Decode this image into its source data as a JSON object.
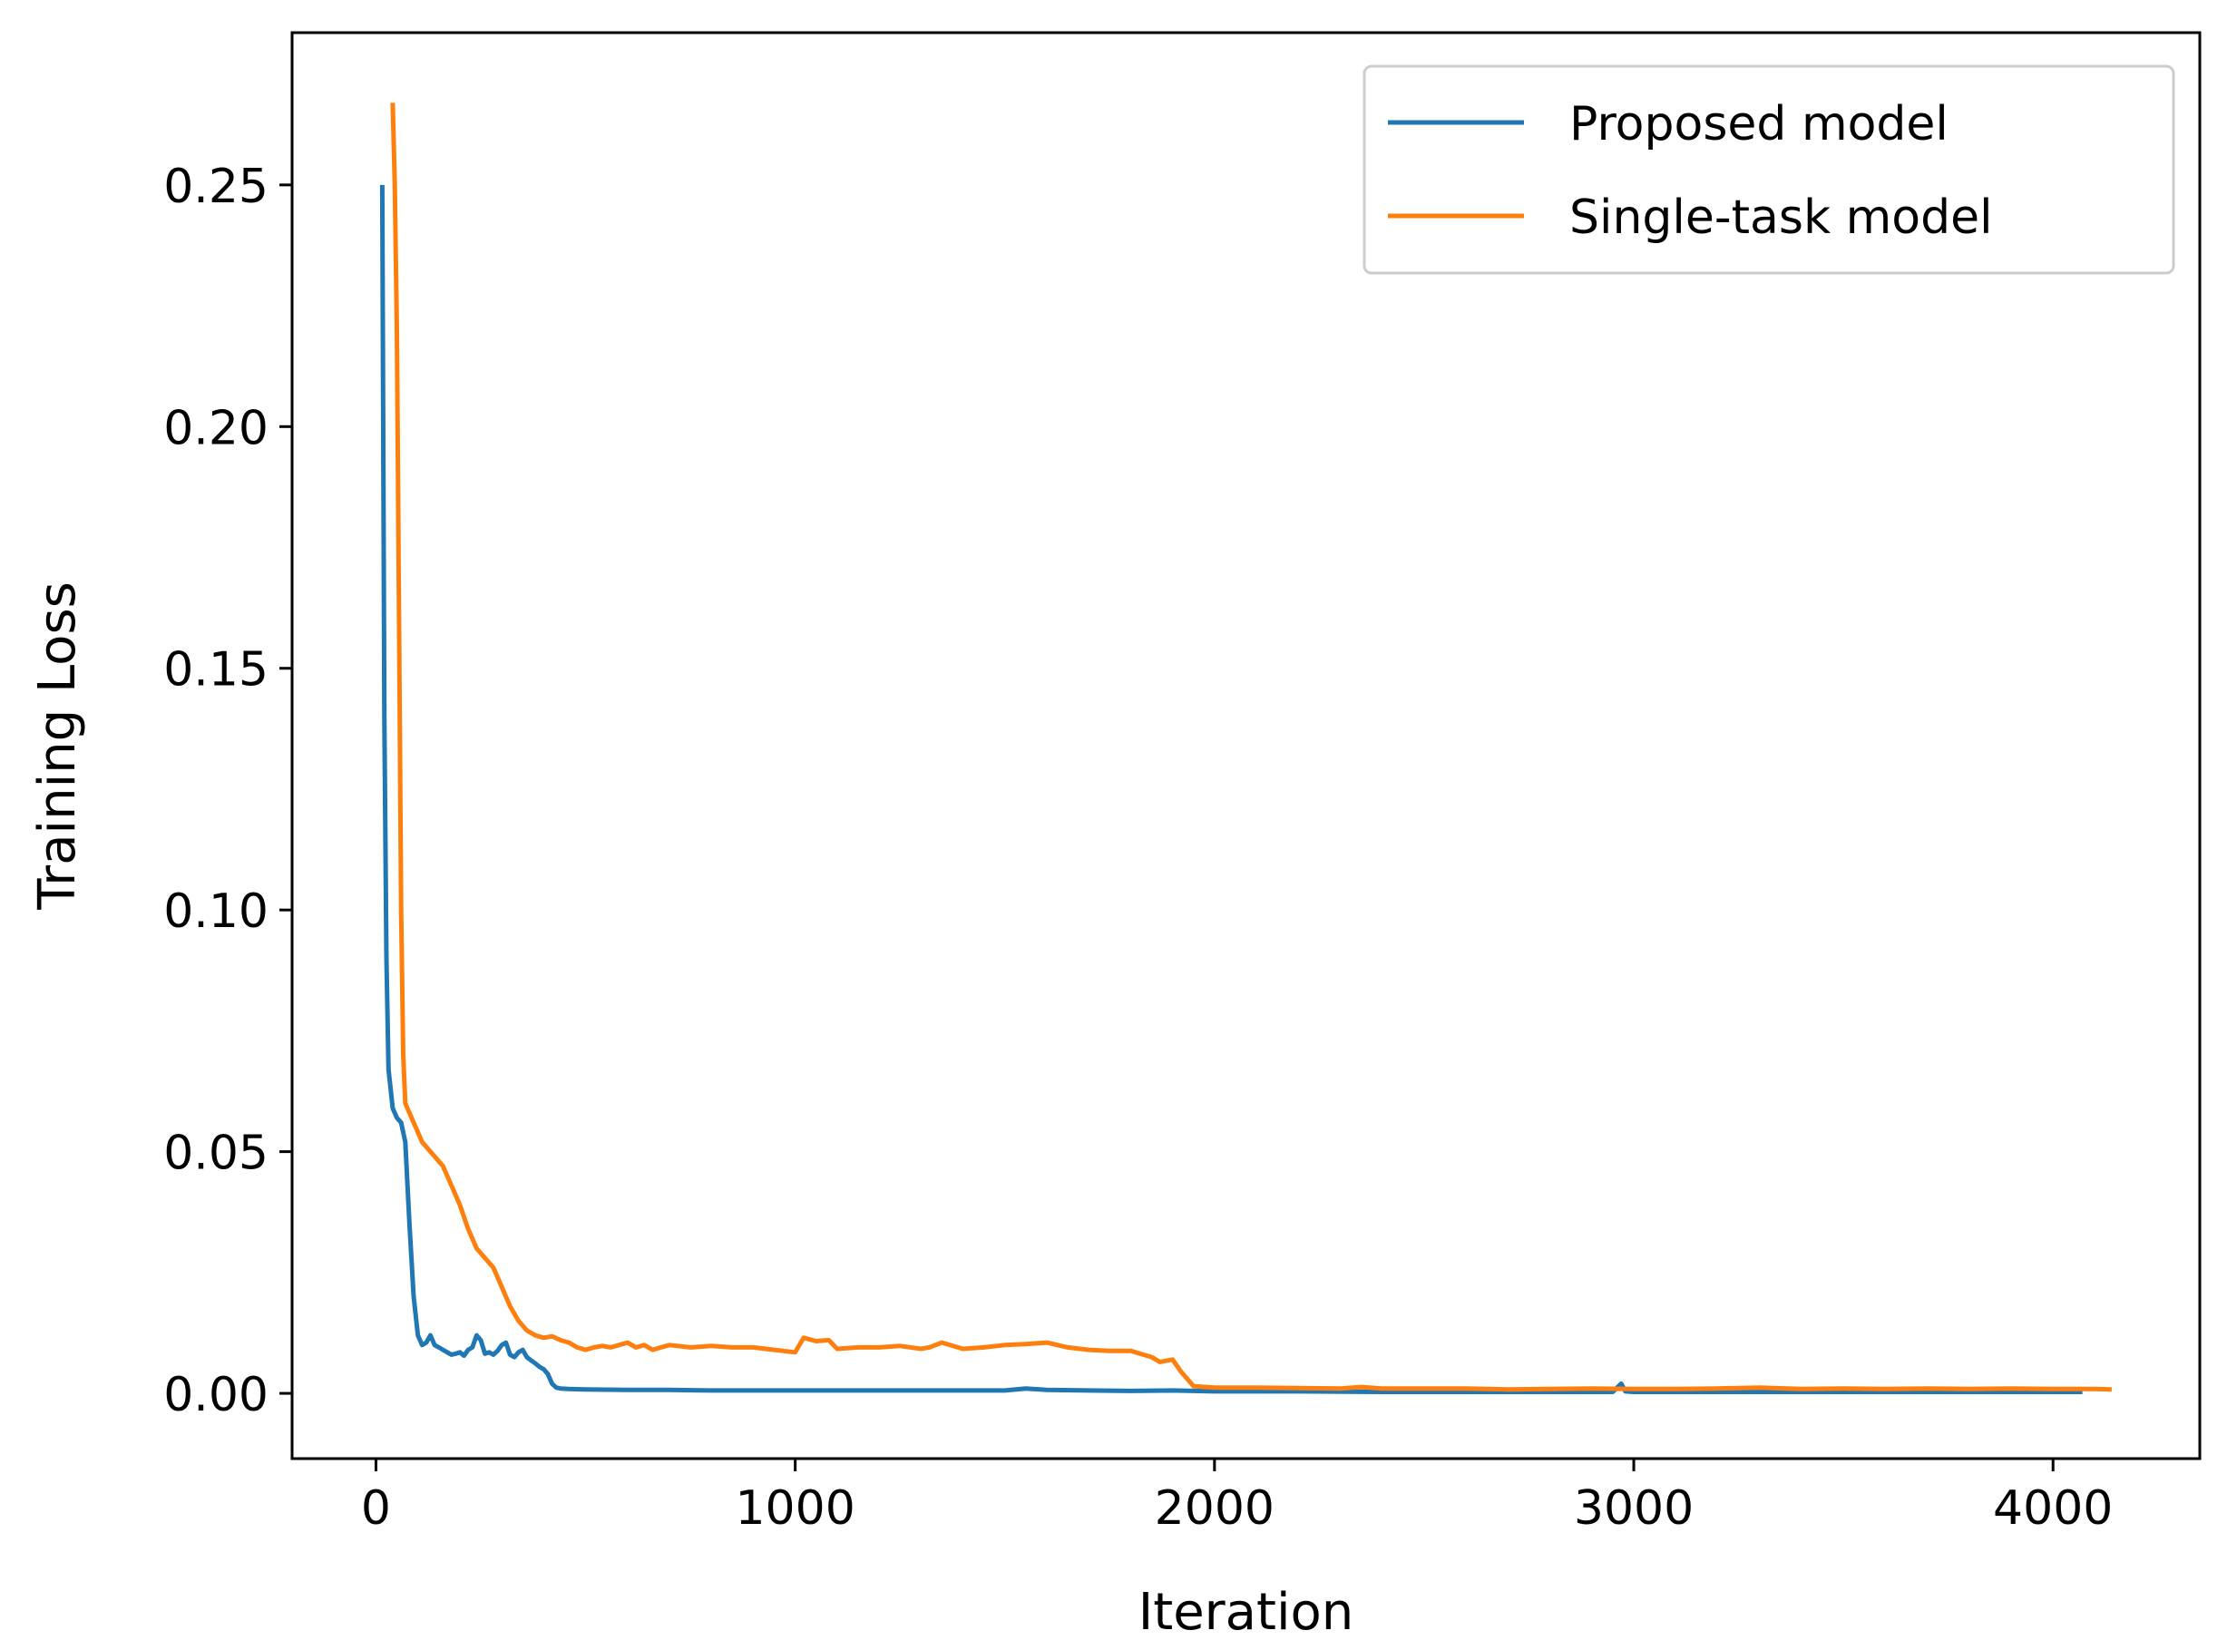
{
  "chart_data": {
    "type": "line",
    "title": "",
    "xlabel": "Iteration",
    "ylabel": "Training Loss",
    "xlim": [
      -200,
      4350
    ],
    "ylim": [
      -0.0135,
      0.2815
    ],
    "x_ticks": [
      0,
      1000,
      2000,
      3000,
      4000
    ],
    "x_tick_labels": [
      "0",
      "1000",
      "2000",
      "3000",
      "4000"
    ],
    "y_ticks": [
      0,
      0.05,
      0.1,
      0.15,
      0.2,
      0.25
    ],
    "y_tick_labels": [
      "0.00",
      "0.05",
      "0.10",
      "0.15",
      "0.20",
      "0.25"
    ],
    "grid": false,
    "legend_position": "top-right",
    "series": [
      {
        "name": "Proposed model",
        "color": "#1f77b4",
        "x": [
          15,
          20,
          25,
          30,
          40,
          50,
          60,
          70,
          80,
          90,
          100,
          110,
          120,
          130,
          140,
          150,
          160,
          170,
          180,
          190,
          200,
          210,
          220,
          230,
          240,
          250,
          260,
          270,
          280,
          290,
          300,
          310,
          320,
          330,
          340,
          350,
          360,
          370,
          380,
          390,
          400,
          410,
          420,
          430,
          440,
          460,
          500,
          600,
          700,
          800,
          900,
          1000,
          1200,
          1400,
          1500,
          1550,
          1600,
          1700,
          1800,
          1900,
          2000,
          2200,
          2400,
          2600,
          2800,
          2950,
          2970,
          2980,
          3000,
          3200,
          3400,
          3600,
          3800,
          4000,
          4070
        ],
        "y": [
          0.25,
          0.14,
          0.09,
          0.067,
          0.059,
          0.057,
          0.056,
          0.052,
          0.035,
          0.02,
          0.012,
          0.01,
          0.0105,
          0.012,
          0.01,
          0.0095,
          0.009,
          0.0085,
          0.008,
          0.0082,
          0.0085,
          0.0078,
          0.009,
          0.0095,
          0.012,
          0.011,
          0.0082,
          0.0085,
          0.008,
          0.0088,
          0.01,
          0.0105,
          0.008,
          0.0075,
          0.0085,
          0.009,
          0.0075,
          0.0068,
          0.0062,
          0.0055,
          0.005,
          0.004,
          0.002,
          0.0012,
          0.001,
          0.0009,
          0.0008,
          0.0007,
          0.0007,
          0.0006,
          0.0006,
          0.0006,
          0.0006,
          0.0006,
          0.0006,
          0.001,
          0.0007,
          0.0006,
          0.0005,
          0.0006,
          0.0004,
          0.0004,
          0.0003,
          0.0003,
          0.0003,
          0.0003,
          0.002,
          0.0004,
          0.0003,
          0.0003,
          0.0003,
          0.0003,
          0.0003,
          0.0003,
          0.0003
        ]
      },
      {
        "name": "Single-task model",
        "color": "#ff7f0e",
        "x": [
          40,
          45,
          50,
          55,
          60,
          65,
          70,
          75,
          80,
          90,
          100,
          110,
          120,
          130,
          140,
          150,
          160,
          170,
          180,
          190,
          200,
          220,
          240,
          260,
          280,
          300,
          320,
          340,
          360,
          380,
          400,
          420,
          440,
          460,
          480,
          500,
          520,
          540,
          560,
          580,
          600,
          620,
          640,
          660,
          680,
          700,
          750,
          800,
          850,
          900,
          950,
          1000,
          1020,
          1050,
          1080,
          1100,
          1150,
          1200,
          1250,
          1300,
          1320,
          1350,
          1400,
          1450,
          1500,
          1550,
          1600,
          1650,
          1700,
          1750,
          1800,
          1850,
          1870,
          1900,
          1920,
          1950,
          2000,
          2100,
          2200,
          2300,
          2350,
          2400,
          2500,
          2600,
          2700,
          2800,
          2900,
          3000,
          3100,
          3200,
          3300,
          3400,
          3500,
          3600,
          3700,
          3800,
          3900,
          4000,
          4100,
          4140
        ],
        "y": [
          0.267,
          0.25,
          0.22,
          0.16,
          0.1,
          0.07,
          0.06,
          0.059,
          0.058,
          0.056,
          0.054,
          0.052,
          0.051,
          0.05,
          0.049,
          0.048,
          0.047,
          0.045,
          0.043,
          0.041,
          0.039,
          0.034,
          0.03,
          0.028,
          0.026,
          0.022,
          0.018,
          0.015,
          0.013,
          0.012,
          0.0115,
          0.0118,
          0.011,
          0.0105,
          0.0095,
          0.009,
          0.0095,
          0.0098,
          0.0095,
          0.01,
          0.0105,
          0.0095,
          0.01,
          0.009,
          0.0095,
          0.01,
          0.0095,
          0.0098,
          0.0095,
          0.0095,
          0.009,
          0.0085,
          0.0115,
          0.0108,
          0.011,
          0.0092,
          0.0095,
          0.0095,
          0.0098,
          0.0092,
          0.0095,
          0.0105,
          0.0092,
          0.0095,
          0.01,
          0.0102,
          0.0105,
          0.0095,
          0.009,
          0.0088,
          0.0088,
          0.0075,
          0.0065,
          0.007,
          0.0045,
          0.0015,
          0.0012,
          0.0012,
          0.0011,
          0.001,
          0.0013,
          0.001,
          0.001,
          0.001,
          0.0008,
          0.0009,
          0.001,
          0.0009,
          0.0009,
          0.001,
          0.0012,
          0.0009,
          0.001,
          0.0009,
          0.001,
          0.0009,
          0.001,
          0.0009,
          0.0009,
          0.0008
        ]
      }
    ]
  }
}
